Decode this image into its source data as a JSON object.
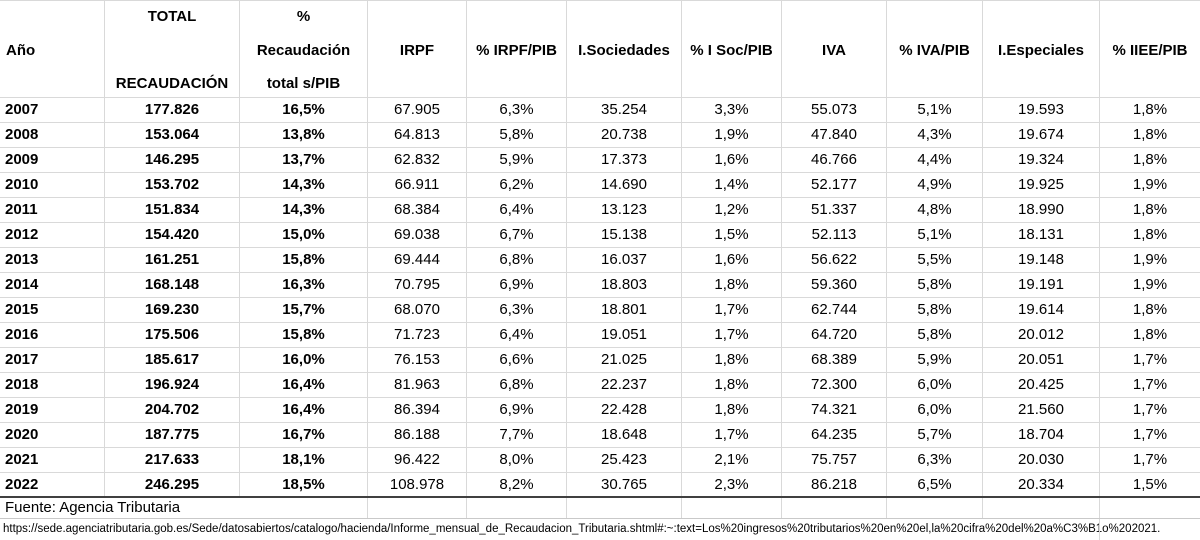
{
  "table": {
    "columns": [
      {
        "key": "ano",
        "lines": [
          "Año"
        ]
      },
      {
        "key": "total-recaudacion",
        "lines": [
          "TOTAL",
          "RECAUDACIÓN"
        ]
      },
      {
        "key": "pct-recaudacion-pib",
        "lines": [
          "%",
          "Recaudación",
          "total s/PIB"
        ]
      },
      {
        "key": "irpf",
        "lines": [
          "IRPF"
        ]
      },
      {
        "key": "pct-irpf-pib",
        "lines": [
          "% IRPF/PIB"
        ]
      },
      {
        "key": "i-sociedades",
        "lines": [
          "I.Sociedades"
        ]
      },
      {
        "key": "pct-isoc-pib",
        "lines": [
          "% I Soc/PIB"
        ]
      },
      {
        "key": "iva",
        "lines": [
          "IVA"
        ]
      },
      {
        "key": "pct-iva-pib",
        "lines": [
          "% IVA/PIB"
        ]
      },
      {
        "key": "i-especiales",
        "lines": [
          "I.Especiales"
        ]
      },
      {
        "key": "pct-iiee-pib",
        "lines": [
          "% IIEE/PIB"
        ]
      }
    ],
    "rows": [
      [
        "2007",
        "177.826",
        "16,5%",
        "67.905",
        "6,3%",
        "35.254",
        "3,3%",
        "55.073",
        "5,1%",
        "19.593",
        "1,8%"
      ],
      [
        "2008",
        "153.064",
        "13,8%",
        "64.813",
        "5,8%",
        "20.738",
        "1,9%",
        "47.840",
        "4,3%",
        "19.674",
        "1,8%"
      ],
      [
        "2009",
        "146.295",
        "13,7%",
        "62.832",
        "5,9%",
        "17.373",
        "1,6%",
        "46.766",
        "4,4%",
        "19.324",
        "1,8%"
      ],
      [
        "2010",
        "153.702",
        "14,3%",
        "66.911",
        "6,2%",
        "14.690",
        "1,4%",
        "52.177",
        "4,9%",
        "19.925",
        "1,9%"
      ],
      [
        "2011",
        "151.834",
        "14,3%",
        "68.384",
        "6,4%",
        "13.123",
        "1,2%",
        "51.337",
        "4,8%",
        "18.990",
        "1,8%"
      ],
      [
        "2012",
        "154.420",
        "15,0%",
        "69.038",
        "6,7%",
        "15.138",
        "1,5%",
        "52.113",
        "5,1%",
        "18.131",
        "1,8%"
      ],
      [
        "2013",
        "161.251",
        "15,8%",
        "69.444",
        "6,8%",
        "16.037",
        "1,6%",
        "56.622",
        "5,5%",
        "19.148",
        "1,9%"
      ],
      [
        "2014",
        "168.148",
        "16,3%",
        "70.795",
        "6,9%",
        "18.803",
        "1,8%",
        "59.360",
        "5,8%",
        "19.191",
        "1,9%"
      ],
      [
        "2015",
        "169.230",
        "15,7%",
        "68.070",
        "6,3%",
        "18.801",
        "1,7%",
        "62.744",
        "5,8%",
        "19.614",
        "1,8%"
      ],
      [
        "2016",
        "175.506",
        "15,8%",
        "71.723",
        "6,4%",
        "19.051",
        "1,7%",
        "64.720",
        "5,8%",
        "20.012",
        "1,8%"
      ],
      [
        "2017",
        "185.617",
        "16,0%",
        "76.153",
        "6,6%",
        "21.025",
        "1,8%",
        "68.389",
        "5,9%",
        "20.051",
        "1,7%"
      ],
      [
        "2018",
        "196.924",
        "16,4%",
        "81.963",
        "6,8%",
        "22.237",
        "1,8%",
        "72.300",
        "6,0%",
        "20.425",
        "1,7%"
      ],
      [
        "2019",
        "204.702",
        "16,4%",
        "86.394",
        "6,9%",
        "22.428",
        "1,8%",
        "74.321",
        "6,0%",
        "21.560",
        "1,7%"
      ],
      [
        "2020",
        "187.775",
        "16,7%",
        "86.188",
        "7,7%",
        "18.648",
        "1,7%",
        "64.235",
        "5,7%",
        "18.704",
        "1,7%"
      ],
      [
        "2021",
        "217.633",
        "18,1%",
        "96.422",
        "8,0%",
        "25.423",
        "2,1%",
        "75.757",
        "6,3%",
        "20.030",
        "1,7%"
      ],
      [
        "2022",
        "246.295",
        "18,5%",
        "108.978",
        "8,2%",
        "30.765",
        "2,3%",
        "86.218",
        "6,5%",
        "20.334",
        "1,5%"
      ]
    ]
  },
  "footer": {
    "source": "Fuente: Agencia Tributaria",
    "url": "https://sede.agenciatributaria.gob.es/Sede/datosabiertos/catalogo/hacienda/Informe_mensual_de_Recaudacion_Tributaria.shtml#:~:text=Los%20ingresos%20tributarios%20en%20el,la%20cifra%20del%20a%C3%B1o%202021."
  },
  "colors": {
    "gridline": "#d9d9d9",
    "heavy_border": "#404040",
    "text": "#000000",
    "background": "#ffffff"
  }
}
